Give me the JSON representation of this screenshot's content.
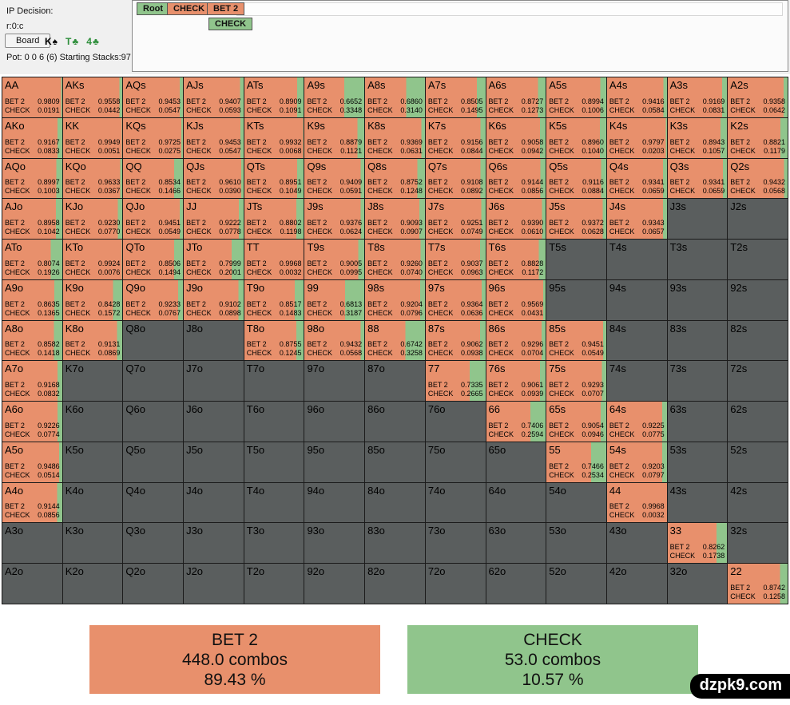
{
  "panel": {
    "title": "IP Decision:",
    "node_id": "r:0:c",
    "board_button": "Board",
    "cards": [
      {
        "label": "K♠",
        "suit_color": "#000000"
      },
      {
        "label": "T♣",
        "suit_color": "#2f8f3c"
      },
      {
        "label": "4♣",
        "suit_color": "#2f8f3c"
      }
    ],
    "pot_line": "Pot: 0 0 6 (6) Starting Stacks:97"
  },
  "nav": {
    "items": [
      {
        "label": "Root",
        "type": "green"
      },
      {
        "label": "CHECK",
        "type": "orange"
      },
      {
        "label": "BET 2",
        "type": "orange"
      }
    ],
    "sub_item": {
      "label": "CHECK",
      "type": "green"
    }
  },
  "actions": {
    "bet_label": "BET 2",
    "check_label": "CHECK"
  },
  "colors": {
    "bet": "#e8906c",
    "check": "#90c58c",
    "empty": "#5a5e5e"
  },
  "grid": {
    "rows": [
      [
        {
          "h": "AA",
          "b": "0.9809",
          "c": "0.0191"
        },
        {
          "h": "AKs",
          "b": "0.9558",
          "c": "0.0442"
        },
        {
          "h": "AQs",
          "b": "0.9453",
          "c": "0.0547"
        },
        {
          "h": "AJs",
          "b": "0.9407",
          "c": "0.0593"
        },
        {
          "h": "ATs",
          "b": "0.8909",
          "c": "0.1091"
        },
        {
          "h": "A9s",
          "b": "0.6652",
          "c": "0.3348"
        },
        {
          "h": "A8s",
          "b": "0.6860",
          "c": "0.3140"
        },
        {
          "h": "A7s",
          "b": "0.8505",
          "c": "0.1495"
        },
        {
          "h": "A6s",
          "b": "0.8727",
          "c": "0.1273"
        },
        {
          "h": "A5s",
          "b": "0.8994",
          "c": "0.1006"
        },
        {
          "h": "A4s",
          "b": "0.9416",
          "c": "0.0584"
        },
        {
          "h": "A3s",
          "b": "0.9169",
          "c": "0.0831"
        },
        {
          "h": "A2s",
          "b": "0.9358",
          "c": "0.0642"
        }
      ],
      [
        {
          "h": "AKo",
          "b": "0.9167",
          "c": "0.0833"
        },
        {
          "h": "KK",
          "b": "0.9949",
          "c": "0.0051"
        },
        {
          "h": "KQs",
          "b": "0.9725",
          "c": "0.0275"
        },
        {
          "h": "KJs",
          "b": "0.9453",
          "c": "0.0547"
        },
        {
          "h": "KTs",
          "b": "0.9932",
          "c": "0.0068"
        },
        {
          "h": "K9s",
          "b": "0.8879",
          "c": "0.1121"
        },
        {
          "h": "K8s",
          "b": "0.9369",
          "c": "0.0631"
        },
        {
          "h": "K7s",
          "b": "0.9156",
          "c": "0.0844"
        },
        {
          "h": "K6s",
          "b": "0.9058",
          "c": "0.0942"
        },
        {
          "h": "K5s",
          "b": "0.8960",
          "c": "0.1040"
        },
        {
          "h": "K4s",
          "b": "0.9797",
          "c": "0.0203"
        },
        {
          "h": "K3s",
          "b": "0.8943",
          "c": "0.1057"
        },
        {
          "h": "K2s",
          "b": "0.8821",
          "c": "0.1179"
        }
      ],
      [
        {
          "h": "AQo",
          "b": "0.8997",
          "c": "0.1003"
        },
        {
          "h": "KQo",
          "b": "0.9633",
          "c": "0.0367"
        },
        {
          "h": "QQ",
          "b": "0.8534",
          "c": "0.1466"
        },
        {
          "h": "QJs",
          "b": "0.9610",
          "c": "0.0390"
        },
        {
          "h": "QTs",
          "b": "0.8951",
          "c": "0.1049"
        },
        {
          "h": "Q9s",
          "b": "0.9409",
          "c": "0.0591"
        },
        {
          "h": "Q8s",
          "b": "0.8752",
          "c": "0.1248"
        },
        {
          "h": "Q7s",
          "b": "0.9108",
          "c": "0.0892"
        },
        {
          "h": "Q6s",
          "b": "0.9144",
          "c": "0.0856"
        },
        {
          "h": "Q5s",
          "b": "0.9116",
          "c": "0.0884"
        },
        {
          "h": "Q4s",
          "b": "0.9341",
          "c": "0.0659"
        },
        {
          "h": "Q3s",
          "b": "0.9341",
          "c": "0.0659"
        },
        {
          "h": "Q2s",
          "b": "0.9432",
          "c": "0.0568"
        }
      ],
      [
        {
          "h": "AJo",
          "b": "0.8958",
          "c": "0.1042"
        },
        {
          "h": "KJo",
          "b": "0.9230",
          "c": "0.0770"
        },
        {
          "h": "QJo",
          "b": "0.9451",
          "c": "0.0549"
        },
        {
          "h": "JJ",
          "b": "0.9222",
          "c": "0.0778"
        },
        {
          "h": "JTs",
          "b": "0.8802",
          "c": "0.1198"
        },
        {
          "h": "J9s",
          "b": "0.9376",
          "c": "0.0624"
        },
        {
          "h": "J8s",
          "b": "0.9093",
          "c": "0.0907"
        },
        {
          "h": "J7s",
          "b": "0.9251",
          "c": "0.0749"
        },
        {
          "h": "J6s",
          "b": "0.9390",
          "c": "0.0610"
        },
        {
          "h": "J5s",
          "b": "0.9372",
          "c": "0.0628"
        },
        {
          "h": "J4s",
          "b": "0.9343",
          "c": "0.0657"
        },
        {
          "h": "J3s"
        },
        {
          "h": "J2s"
        }
      ],
      [
        {
          "h": "ATo",
          "b": "0.8074",
          "c": "0.1926"
        },
        {
          "h": "KTo",
          "b": "0.9924",
          "c": "0.0076"
        },
        {
          "h": "QTo",
          "b": "0.8506",
          "c": "0.1494"
        },
        {
          "h": "JTo",
          "b": "0.7999",
          "c": "0.2001"
        },
        {
          "h": "TT",
          "b": "0.9968",
          "c": "0.0032"
        },
        {
          "h": "T9s",
          "b": "0.9005",
          "c": "0.0995"
        },
        {
          "h": "T8s",
          "b": "0.9260",
          "c": "0.0740"
        },
        {
          "h": "T7s",
          "b": "0.9037",
          "c": "0.0963"
        },
        {
          "h": "T6s",
          "b": "0.8828",
          "c": "0.1172"
        },
        {
          "h": "T5s"
        },
        {
          "h": "T4s"
        },
        {
          "h": "T3s"
        },
        {
          "h": "T2s"
        }
      ],
      [
        {
          "h": "A9o",
          "b": "0.8635",
          "c": "0.1365"
        },
        {
          "h": "K9o",
          "b": "0.8428",
          "c": "0.1572"
        },
        {
          "h": "Q9o",
          "b": "0.9233",
          "c": "0.0767"
        },
        {
          "h": "J9o",
          "b": "0.9102",
          "c": "0.0898"
        },
        {
          "h": "T9o",
          "b": "0.8517",
          "c": "0.1483"
        },
        {
          "h": "99",
          "b": "0.6813",
          "c": "0.3187"
        },
        {
          "h": "98s",
          "b": "0.9204",
          "c": "0.0796"
        },
        {
          "h": "97s",
          "b": "0.9364",
          "c": "0.0636"
        },
        {
          "h": "96s",
          "b": "0.9569",
          "c": "0.0431"
        },
        {
          "h": "95s"
        },
        {
          "h": "94s"
        },
        {
          "h": "93s"
        },
        {
          "h": "92s"
        }
      ],
      [
        {
          "h": "A8o",
          "b": "0.8582",
          "c": "0.1418"
        },
        {
          "h": "K8o",
          "b": "0.9131",
          "c": "0.0869"
        },
        {
          "h": "Q8o"
        },
        {
          "h": "J8o"
        },
        {
          "h": "T8o",
          "b": "0.8755",
          "c": "0.1245"
        },
        {
          "h": "98o",
          "b": "0.9432",
          "c": "0.0568"
        },
        {
          "h": "88",
          "b": "0.6742",
          "c": "0.3258"
        },
        {
          "h": "87s",
          "b": "0.9062",
          "c": "0.0938"
        },
        {
          "h": "86s",
          "b": "0.9296",
          "c": "0.0704"
        },
        {
          "h": "85s",
          "b": "0.9451",
          "c": "0.0549"
        },
        {
          "h": "84s"
        },
        {
          "h": "83s"
        },
        {
          "h": "82s"
        }
      ],
      [
        {
          "h": "A7o",
          "b": "0.9168",
          "c": "0.0832"
        },
        {
          "h": "K7o"
        },
        {
          "h": "Q7o"
        },
        {
          "h": "J7o"
        },
        {
          "h": "T7o"
        },
        {
          "h": "97o"
        },
        {
          "h": "87o"
        },
        {
          "h": "77",
          "b": "0.7335",
          "c": "0.2665"
        },
        {
          "h": "76s",
          "b": "0.9061",
          "c": "0.0939"
        },
        {
          "h": "75s",
          "b": "0.9293",
          "c": "0.0707"
        },
        {
          "h": "74s"
        },
        {
          "h": "73s"
        },
        {
          "h": "72s"
        }
      ],
      [
        {
          "h": "A6o",
          "b": "0.9226",
          "c": "0.0774"
        },
        {
          "h": "K6o"
        },
        {
          "h": "Q6o"
        },
        {
          "h": "J6o"
        },
        {
          "h": "T6o"
        },
        {
          "h": "96o"
        },
        {
          "h": "86o"
        },
        {
          "h": "76o"
        },
        {
          "h": "66",
          "b": "0.7406",
          "c": "0.2594"
        },
        {
          "h": "65s",
          "b": "0.9054",
          "c": "0.0946"
        },
        {
          "h": "64s",
          "b": "0.9225",
          "c": "0.0775"
        },
        {
          "h": "63s"
        },
        {
          "h": "62s"
        }
      ],
      [
        {
          "h": "A5o",
          "b": "0.9486",
          "c": "0.0514"
        },
        {
          "h": "K5o"
        },
        {
          "h": "Q5o"
        },
        {
          "h": "J5o"
        },
        {
          "h": "T5o"
        },
        {
          "h": "95o"
        },
        {
          "h": "85o"
        },
        {
          "h": "75o"
        },
        {
          "h": "65o"
        },
        {
          "h": "55",
          "b": "0.7466",
          "c": "0.2534"
        },
        {
          "h": "54s",
          "b": "0.9203",
          "c": "0.0797"
        },
        {
          "h": "53s"
        },
        {
          "h": "52s"
        }
      ],
      [
        {
          "h": "A4o",
          "b": "0.9144",
          "c": "0.0856"
        },
        {
          "h": "K4o"
        },
        {
          "h": "Q4o"
        },
        {
          "h": "J4o"
        },
        {
          "h": "T4o"
        },
        {
          "h": "94o"
        },
        {
          "h": "84o"
        },
        {
          "h": "74o"
        },
        {
          "h": "64o"
        },
        {
          "h": "54o"
        },
        {
          "h": "44",
          "b": "0.9968",
          "c": "0.0032"
        },
        {
          "h": "43s"
        },
        {
          "h": "42s"
        }
      ],
      [
        {
          "h": "A3o"
        },
        {
          "h": "K3o"
        },
        {
          "h": "Q3o"
        },
        {
          "h": "J3o"
        },
        {
          "h": "T3o"
        },
        {
          "h": "93o"
        },
        {
          "h": "83o"
        },
        {
          "h": "73o"
        },
        {
          "h": "63o"
        },
        {
          "h": "53o"
        },
        {
          "h": "43o"
        },
        {
          "h": "33",
          "b": "0.8262",
          "c": "0.1738"
        },
        {
          "h": "32s"
        }
      ],
      [
        {
          "h": "A2o"
        },
        {
          "h": "K2o"
        },
        {
          "h": "Q2o"
        },
        {
          "h": "J2o"
        },
        {
          "h": "T2o"
        },
        {
          "h": "92o"
        },
        {
          "h": "82o"
        },
        {
          "h": "72o"
        },
        {
          "h": "62o"
        },
        {
          "h": "52o"
        },
        {
          "h": "42o"
        },
        {
          "h": "32o"
        },
        {
          "h": "22",
          "b": "0.8742",
          "c": "0.1258"
        }
      ]
    ]
  },
  "summary": {
    "bet": {
      "title": "BET 2",
      "combos": "448.0 combos",
      "percent": "89.43 %"
    },
    "check": {
      "title": "CHECK",
      "combos": "53.0 combos",
      "percent": "10.57 %"
    }
  },
  "watermark": "dzpk9.com"
}
